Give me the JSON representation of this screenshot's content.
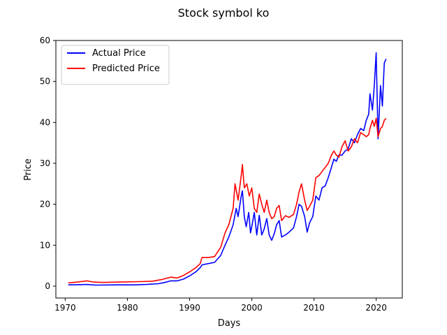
{
  "chart_data": {
    "type": "line",
    "title": "Stock symbol ko",
    "xlabel": "Days",
    "ylabel": "Price",
    "xlim": [
      1968.5,
      2024.2
    ],
    "ylim": [
      -2.9,
      60
    ],
    "xticks": [
      1970,
      1980,
      1990,
      2000,
      2010,
      2020
    ],
    "yticks": [
      0,
      10,
      20,
      30,
      40,
      50,
      60
    ],
    "grid": false,
    "legend_position": "upper-left",
    "series": [
      {
        "name": "Actual Price",
        "color": "#0000ff",
        "points": [
          [
            1970.5,
            0.3
          ],
          [
            1972,
            0.35
          ],
          [
            1973.5,
            0.4
          ],
          [
            1975,
            0.25
          ],
          [
            1978,
            0.3
          ],
          [
            1981,
            0.3
          ],
          [
            1983,
            0.4
          ],
          [
            1985,
            0.6
          ],
          [
            1986,
            0.9
          ],
          [
            1987,
            1.3
          ],
          [
            1988,
            1.3
          ],
          [
            1989,
            1.7
          ],
          [
            1990,
            2.5
          ],
          [
            1991,
            3.5
          ],
          [
            1991.7,
            4.5
          ],
          [
            1992,
            5.2
          ],
          [
            1993,
            5.5
          ],
          [
            1994,
            5.8
          ],
          [
            1995,
            7.5
          ],
          [
            1995.7,
            10
          ],
          [
            1996.3,
            12
          ],
          [
            1997,
            15
          ],
          [
            1997.5,
            19
          ],
          [
            1997.8,
            17
          ],
          [
            1998.3,
            22
          ],
          [
            1998.5,
            23.3
          ],
          [
            1998.8,
            17
          ],
          [
            1999.1,
            14.5
          ],
          [
            1999.5,
            18
          ],
          [
            1999.8,
            13
          ],
          [
            2000,
            14.5
          ],
          [
            2000.4,
            18
          ],
          [
            2000.8,
            12.5
          ],
          [
            2001.2,
            17.3
          ],
          [
            2001.6,
            12.5
          ],
          [
            2002,
            14
          ],
          [
            2002.4,
            16.5
          ],
          [
            2002.8,
            12.5
          ],
          [
            2003.2,
            11.2
          ],
          [
            2003.6,
            12.8
          ],
          [
            2004,
            15
          ],
          [
            2004.4,
            16
          ],
          [
            2004.8,
            12
          ],
          [
            2005.4,
            12.5
          ],
          [
            2006,
            13.2
          ],
          [
            2006.7,
            14.2
          ],
          [
            2007.2,
            17
          ],
          [
            2007.6,
            20
          ],
          [
            2008,
            19.5
          ],
          [
            2008.5,
            17
          ],
          [
            2008.9,
            13.2
          ],
          [
            2009.3,
            15.5
          ],
          [
            2009.8,
            17
          ],
          [
            2010.3,
            22
          ],
          [
            2010.8,
            21
          ],
          [
            2011.3,
            24
          ],
          [
            2011.8,
            24.5
          ],
          [
            2012.3,
            26.5
          ],
          [
            2012.8,
            29
          ],
          [
            2013.2,
            31
          ],
          [
            2013.6,
            30.5
          ],
          [
            2014,
            32
          ],
          [
            2014.5,
            32
          ],
          [
            2015,
            33
          ],
          [
            2015.5,
            33.5
          ],
          [
            2016,
            36
          ],
          [
            2016.5,
            35
          ],
          [
            2017,
            37
          ],
          [
            2017.5,
            38.5
          ],
          [
            2018,
            38
          ],
          [
            2018.4,
            40.5
          ],
          [
            2018.8,
            42
          ],
          [
            2019,
            47
          ],
          [
            2019.4,
            43
          ],
          [
            2019.7,
            49
          ],
          [
            2020,
            57
          ],
          [
            2020.3,
            36
          ],
          [
            2020.7,
            49
          ],
          [
            2021,
            44
          ],
          [
            2021.3,
            54.5
          ],
          [
            2021.6,
            55.5
          ]
        ]
      },
      {
        "name": "Predicted Price",
        "color": "#ff0000",
        "points": [
          [
            1970.5,
            0.8
          ],
          [
            1972,
            1.0
          ],
          [
            1973.5,
            1.3
          ],
          [
            1974.5,
            1.0
          ],
          [
            1976,
            0.9
          ],
          [
            1979,
            1.0
          ],
          [
            1982,
            1.1
          ],
          [
            1984,
            1.2
          ],
          [
            1985.5,
            1.6
          ],
          [
            1987,
            2.2
          ],
          [
            1988,
            2.0
          ],
          [
            1989,
            2.6
          ],
          [
            1990,
            3.5
          ],
          [
            1991,
            4.5
          ],
          [
            1991.7,
            5.5
          ],
          [
            1992,
            7.0
          ],
          [
            1993,
            7.0
          ],
          [
            1994,
            7.2
          ],
          [
            1995,
            9.5
          ],
          [
            1995.7,
            13
          ],
          [
            1996.3,
            15
          ],
          [
            1997,
            19
          ],
          [
            1997.3,
            25
          ],
          [
            1997.8,
            21
          ],
          [
            1998.3,
            27
          ],
          [
            1998.5,
            29.7
          ],
          [
            1998.8,
            24
          ],
          [
            1999.2,
            25
          ],
          [
            1999.6,
            22
          ],
          [
            2000,
            24
          ],
          [
            2000.4,
            19
          ],
          [
            2000.8,
            18
          ],
          [
            2001.2,
            22.5
          ],
          [
            2001.6,
            20
          ],
          [
            2002,
            18
          ],
          [
            2002.4,
            21
          ],
          [
            2002.8,
            18
          ],
          [
            2003.2,
            16.5
          ],
          [
            2003.6,
            17
          ],
          [
            2004,
            19
          ],
          [
            2004.4,
            19.7
          ],
          [
            2004.8,
            16
          ],
          [
            2005.4,
            17.2
          ],
          [
            2006,
            16.8
          ],
          [
            2006.7,
            17.5
          ],
          [
            2007.2,
            20
          ],
          [
            2007.6,
            23
          ],
          [
            2008,
            25
          ],
          [
            2008.5,
            21
          ],
          [
            2008.9,
            18.5
          ],
          [
            2009.3,
            19.5
          ],
          [
            2009.8,
            21
          ],
          [
            2010.3,
            26.5
          ],
          [
            2010.8,
            27
          ],
          [
            2011.3,
            28
          ],
          [
            2011.8,
            29
          ],
          [
            2012.3,
            30
          ],
          [
            2012.8,
            32
          ],
          [
            2013.2,
            33
          ],
          [
            2013.6,
            32
          ],
          [
            2014,
            31.5
          ],
          [
            2014.5,
            34
          ],
          [
            2015,
            35.5
          ],
          [
            2015.5,
            33
          ],
          [
            2016,
            34
          ],
          [
            2016.5,
            36
          ],
          [
            2017,
            35
          ],
          [
            2017.5,
            37.5
          ],
          [
            2018,
            37
          ],
          [
            2018.4,
            36.5
          ],
          [
            2018.8,
            37
          ],
          [
            2019,
            38.5
          ],
          [
            2019.4,
            40.5
          ],
          [
            2019.7,
            39
          ],
          [
            2020,
            41
          ],
          [
            2020.3,
            36.5
          ],
          [
            2020.7,
            38.5
          ],
          [
            2021,
            39
          ],
          [
            2021.3,
            40.5
          ],
          [
            2021.6,
            41
          ]
        ]
      }
    ]
  }
}
